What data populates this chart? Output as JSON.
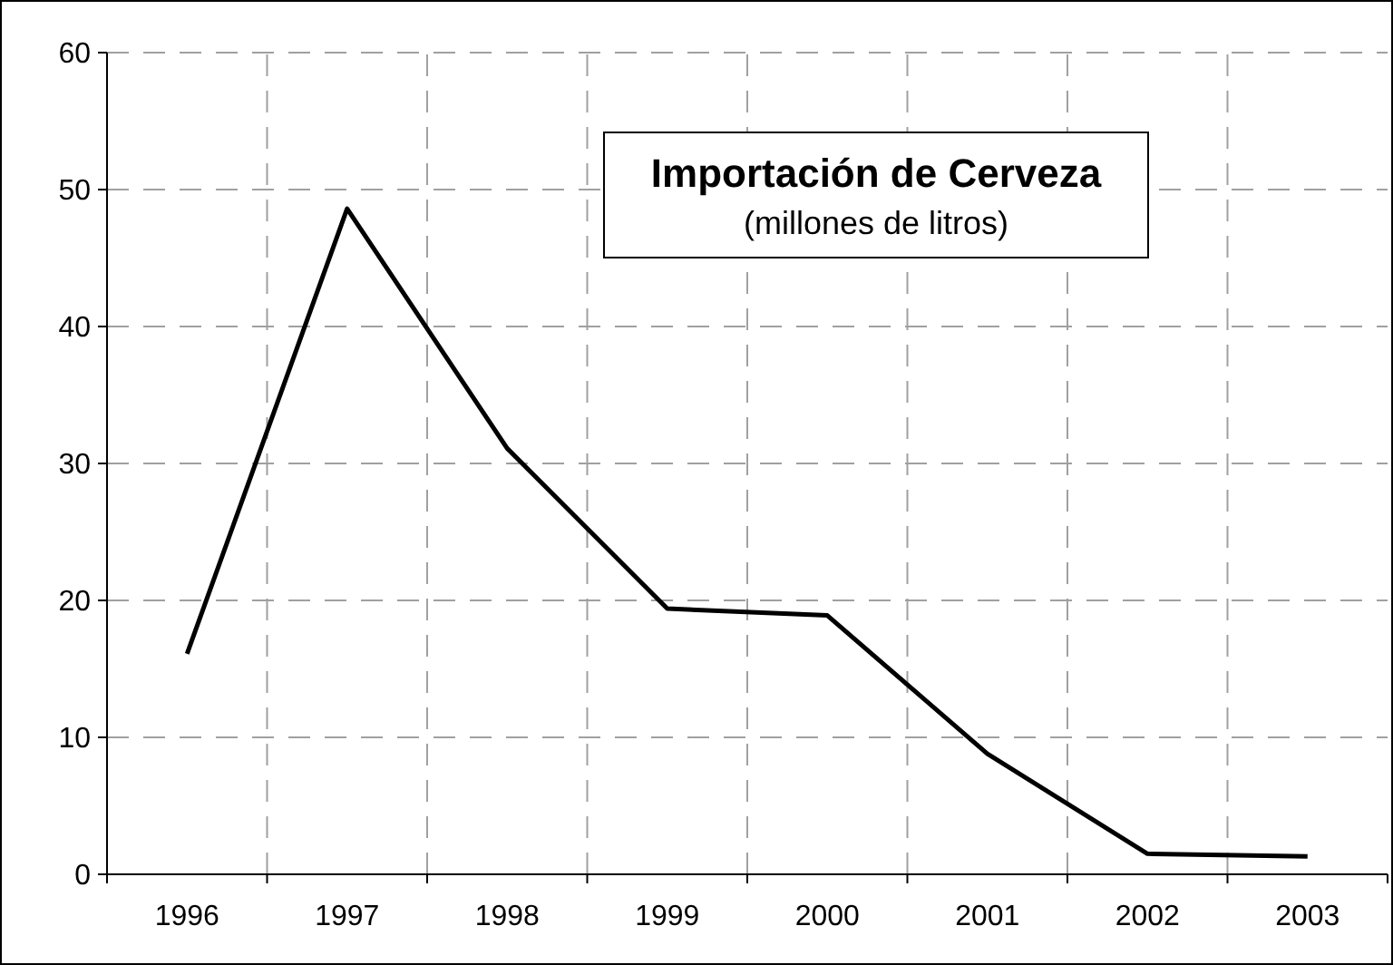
{
  "chart_data": {
    "type": "line",
    "title": "Importación de Cerveza",
    "subtitle": "(millones de litros)",
    "categories": [
      "1996",
      "1997",
      "1998",
      "1999",
      "2000",
      "2001",
      "2002",
      "2003"
    ],
    "series": [
      {
        "color": "#000000",
        "values": [
          16.1,
          48.6,
          31.1,
          19.4,
          18.9,
          8.8,
          1.5,
          1.3
        ]
      }
    ],
    "ylim": [
      0,
      60
    ],
    "yticks": [
      0,
      10,
      20,
      30,
      40,
      50,
      60
    ],
    "grid": true,
    "marker": "none",
    "line_style": "solid"
  }
}
